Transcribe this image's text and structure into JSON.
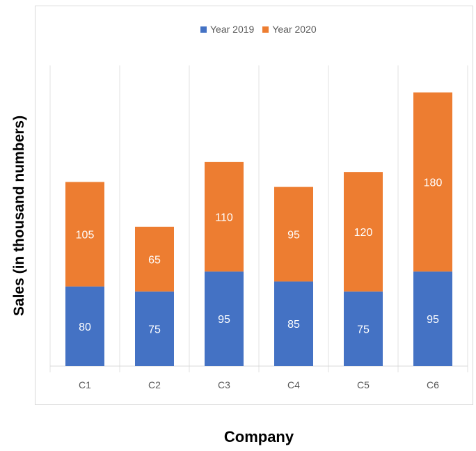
{
  "chart_data": {
    "type": "bar",
    "stacked": true,
    "categories": [
      "C1",
      "C2",
      "C3",
      "C4",
      "C5",
      "C6"
    ],
    "series": [
      {
        "name": "Year 2019",
        "color": "#4472c4",
        "values": [
          80,
          75,
          95,
          85,
          75,
          95
        ]
      },
      {
        "name": "Year 2020",
        "color": "#ed7d31",
        "values": [
          105,
          65,
          110,
          95,
          120,
          180
        ]
      }
    ],
    "xlabel": "Company",
    "ylabel": "Sales (in thousand numbers)",
    "ylim": [
      0,
      275
    ],
    "grid": "vertical-separators",
    "legend": "top-center",
    "data_labels": true
  }
}
